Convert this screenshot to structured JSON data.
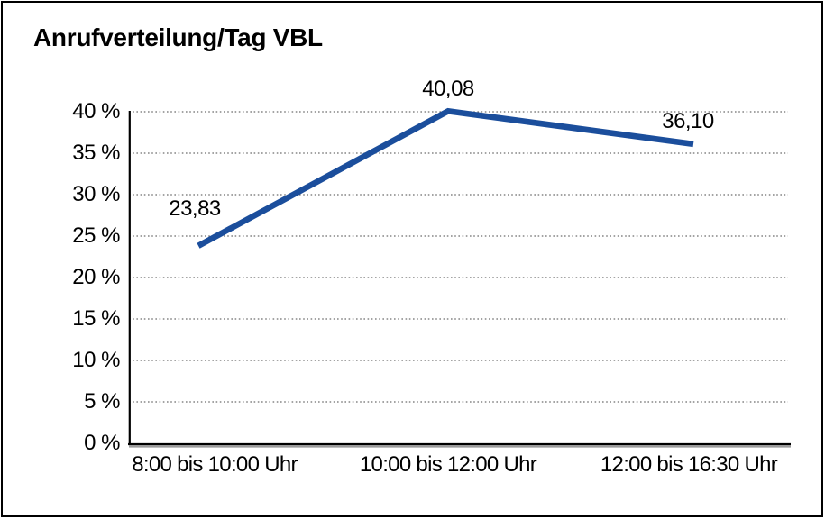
{
  "chart_data": {
    "type": "line",
    "title": "Anrufverteilung/Tag VBL",
    "categories": [
      "8:00 bis 10:00 Uhr",
      "10:00 bis 12:00 Uhr",
      "12:00 bis 16:30 Uhr"
    ],
    "series": [
      {
        "values": [
          23.83,
          40.08,
          36.1
        ],
        "data_labels": [
          "23,83",
          "40,08",
          "36,10"
        ]
      }
    ],
    "xlabel": "",
    "ylabel": "",
    "ylim": [
      0,
      40
    ],
    "ytick_step": 5,
    "ytick_labels": [
      "0 %",
      "5 %",
      "10 %",
      "15 %",
      "20 %",
      "25 %",
      "30 %",
      "35 %",
      "40 %"
    ],
    "grid": "horizontal-dotted",
    "legend": "none",
    "colors": {
      "line": "#1b4e9c",
      "grid": "#6e6e6e",
      "axis": "#000000",
      "axis_shadow": "#9a9a9a",
      "text": "#000000",
      "background": "#ffffff",
      "border": "#000000"
    }
  }
}
